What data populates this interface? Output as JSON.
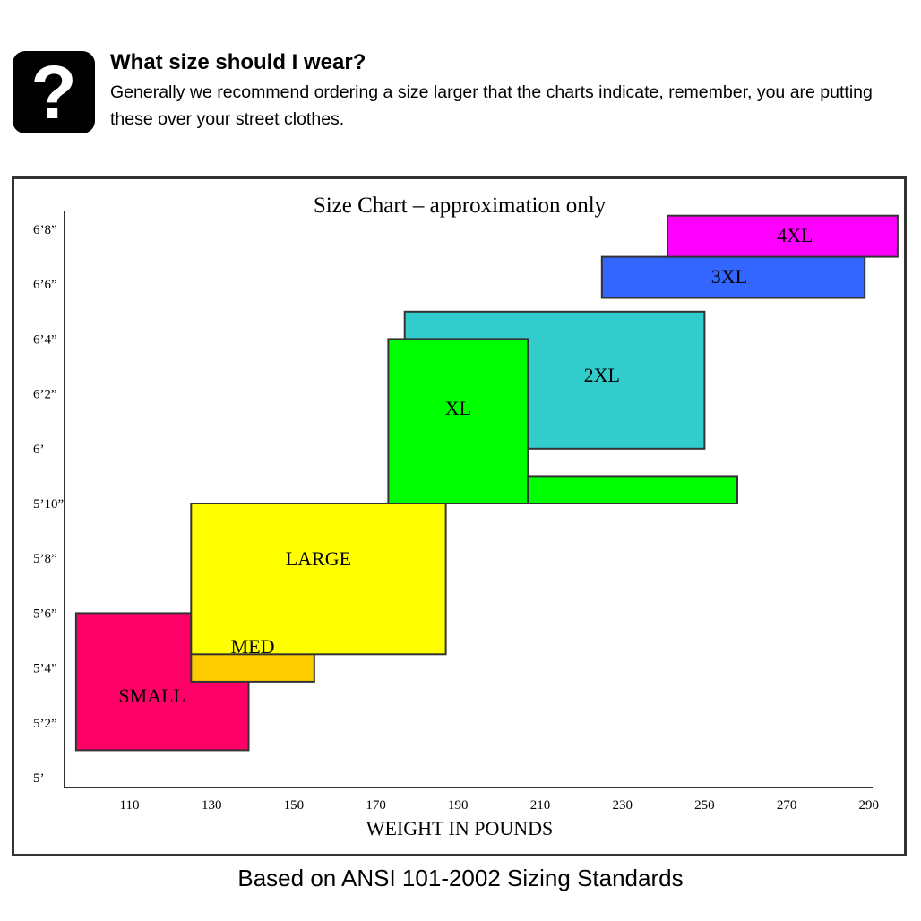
{
  "faq": {
    "icon": "question-mark-icon",
    "icon_glyph": "?",
    "question": "What size should I wear?",
    "answer": "Generally we recommend ordering a size larger that the charts indicate, remember, you are putting these over your street clothes."
  },
  "chart_data": {
    "type": "range-rectangles",
    "title": "Size Chart – approximation only",
    "xlabel": "WEIGHT IN POUNDS",
    "ylabel": "",
    "x_ticks": [
      110,
      130,
      150,
      170,
      190,
      210,
      230,
      250,
      270,
      290
    ],
    "y_ticks": [
      {
        "label": "5’",
        "inches": 60
      },
      {
        "label": "5’2”",
        "inches": 62
      },
      {
        "label": "5’4”",
        "inches": 64
      },
      {
        "label": "5’6”",
        "inches": 66
      },
      {
        "label": "5’8”",
        "inches": 68
      },
      {
        "label": "5’10”",
        "inches": 70
      },
      {
        "label": "6’",
        "inches": 72
      },
      {
        "label": "6’2”",
        "inches": 74
      },
      {
        "label": "6’4”",
        "inches": 76
      },
      {
        "label": "6’6”",
        "inches": 78
      },
      {
        "label": "6’8”",
        "inches": 80
      }
    ],
    "xlim": [
      97,
      293
    ],
    "ylim": [
      60,
      80.5
    ],
    "grid": false,
    "sizes": [
      {
        "label": "SMALL",
        "weight_range": [
          97,
          139
        ],
        "height_range_in": [
          61,
          66
        ],
        "color": "#ff0066",
        "label_at": [
          115.5,
          63
        ]
      },
      {
        "label": "MED",
        "weight_range": [
          125,
          155
        ],
        "height_range_in": [
          63.5,
          66
        ],
        "color": "#ffcc00",
        "label_at": [
          140,
          64.8
        ]
      },
      {
        "label": "LARGE",
        "weight_range": [
          125,
          187
        ],
        "height_range_in": [
          64.5,
          70
        ],
        "color": "#ffff00",
        "label_at": [
          156,
          68
        ]
      },
      {
        "label": "2XL",
        "weight_range": [
          177,
          250
        ],
        "height_range_in": [
          72,
          77
        ],
        "color": "#33cccc",
        "label_at": [
          225,
          74.7
        ]
      },
      {
        "label": "XL",
        "weight_range": [
          173,
          207
        ],
        "height_range_in": [
          70,
          76
        ],
        "color": "#00ff00",
        "label_at": [
          190,
          73.5
        ]
      },
      {
        "label": "XL",
        "weight_range": [
          207,
          258
        ],
        "height_range_in": [
          70,
          71
        ],
        "color": "#00ff00",
        "label_at": null
      },
      {
        "label": "3XL",
        "weight_range": [
          225,
          289
        ],
        "height_range_in": [
          77.5,
          79
        ],
        "color": "#3366ff",
        "label_at": [
          256,
          78.3
        ]
      },
      {
        "label": "4XL",
        "weight_range": [
          241,
          297
        ],
        "height_range_in": [
          79,
          80.5
        ],
        "color": "#ff00ff",
        "label_at": [
          272,
          79.8
        ]
      }
    ]
  },
  "footnote": "Based on ANSI 101-2002 Sizing Standards"
}
